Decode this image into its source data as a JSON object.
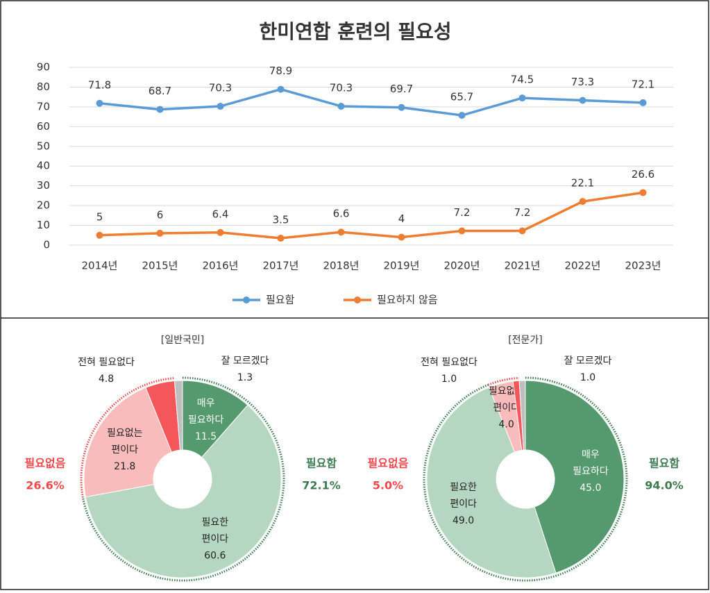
{
  "chart_data": [
    {
      "type": "line",
      "title": "한미연합 훈련의 필요성",
      "categories": [
        "2014년",
        "2015년",
        "2016년",
        "2017년",
        "2018년",
        "2019년",
        "2020년",
        "2021년",
        "2022년",
        "2023년"
      ],
      "series": [
        {
          "name": "필요함",
          "color": "#5b9bd5",
          "values": [
            71.8,
            68.7,
            70.3,
            78.9,
            70.3,
            69.7,
            65.7,
            74.5,
            73.3,
            72.1
          ]
        },
        {
          "name": "필요하지 않음",
          "color": "#ed7d31",
          "values": [
            5,
            6,
            6.4,
            3.5,
            6.6,
            4,
            7.2,
            7.2,
            22.1,
            26.6
          ]
        }
      ],
      "ylim": [
        0,
        90
      ],
      "yticks": [
        0,
        10,
        20,
        30,
        40,
        50,
        60,
        70,
        80,
        90
      ],
      "grid": true,
      "legend": "bottom"
    },
    {
      "type": "pie",
      "title": "[일반국민]",
      "labels": [
        [
          "매우",
          "필요하다"
        ],
        [
          "필요한",
          "편이다"
        ],
        [
          "필요없는",
          "편이다"
        ],
        [
          "전혀 필요없다"
        ],
        [
          "잘 모르겠다"
        ]
      ],
      "values": [
        11.5,
        60.6,
        21.8,
        4.8,
        1.3
      ],
      "colors": [
        "#559a6e",
        "#b5d6c1",
        "#f9bcbc",
        "#f4575a",
        "#bfbfbf"
      ],
      "groups": [
        {
          "name": "필요함",
          "value": 72.1,
          "label": "72.1%",
          "color": "#3c7a4f"
        },
        {
          "name": "필요없음",
          "value": 26.6,
          "label": "26.6%",
          "color": "#f0484b"
        }
      ]
    },
    {
      "type": "pie",
      "title": "[전문가]",
      "labels": [
        [
          "매우",
          "필요하다"
        ],
        [
          "필요한",
          "편이다"
        ],
        [
          "필요없는",
          "편이다"
        ],
        [
          "전혀 필요없다"
        ],
        [
          "잘 모르겠다"
        ]
      ],
      "values": [
        45,
        49,
        4,
        1,
        1
      ],
      "value_labels": [
        "45.0",
        "49.0",
        "4.0",
        "1.0",
        "1.0"
      ],
      "colors": [
        "#559a6e",
        "#b5d6c1",
        "#f9bcbc",
        "#f4575a",
        "#bfbfbf"
      ],
      "groups": [
        {
          "name": "필요함",
          "value": 94,
          "label": "94.0%",
          "color": "#3c7a4f"
        },
        {
          "name": "필요없음",
          "value": 5,
          "label": "5.0%",
          "color": "#f0484b"
        }
      ]
    }
  ]
}
